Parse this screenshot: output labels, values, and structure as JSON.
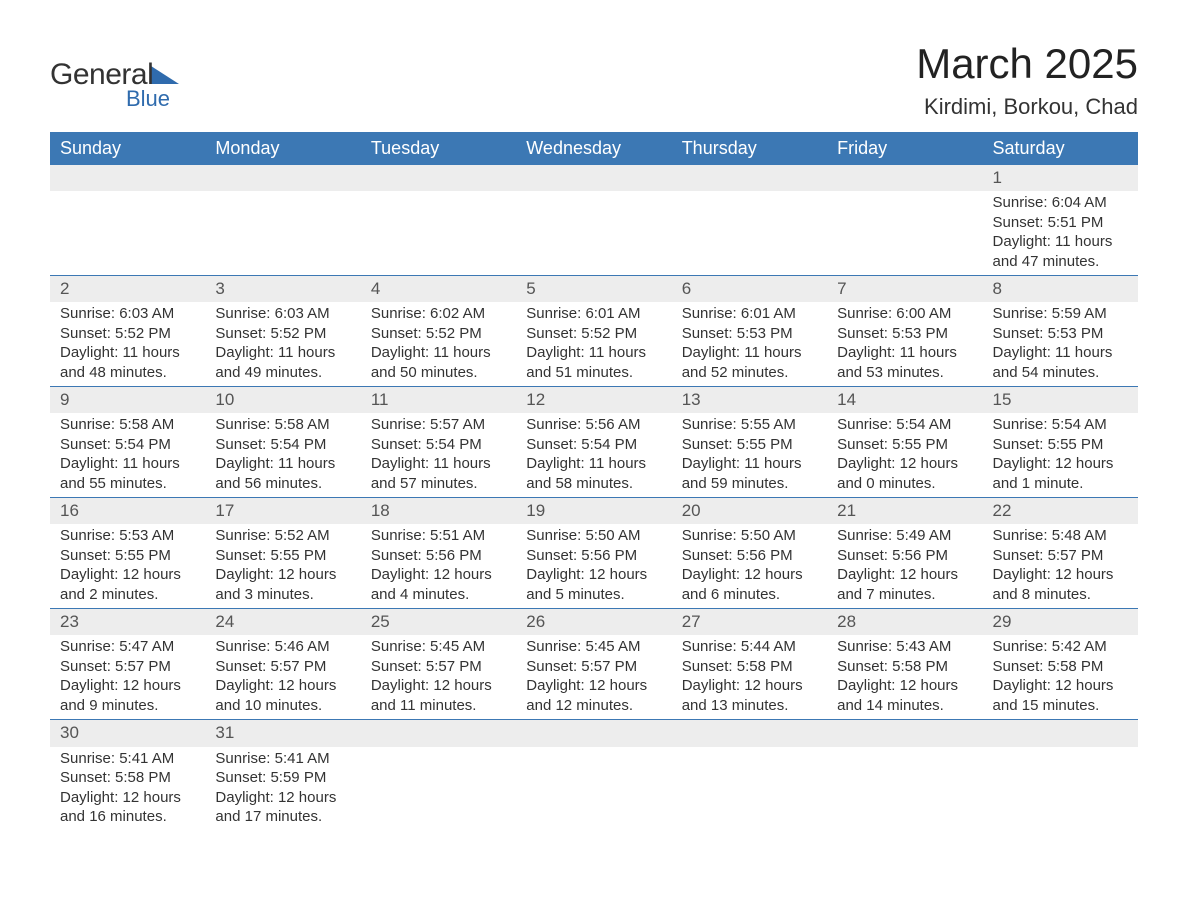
{
  "logo": {
    "main": "General",
    "sub": "Blue"
  },
  "title": "March 2025",
  "location": "Kirdimi, Borkou, Chad",
  "columns": [
    "Sunday",
    "Monday",
    "Tuesday",
    "Wednesday",
    "Thursday",
    "Friday",
    "Saturday"
  ],
  "header_bg": "#3c78b4",
  "header_fg": "#ffffff",
  "daynum_bg": "#ededed",
  "border_color": "#3c78b4",
  "weeks": [
    [
      {
        "d": "",
        "lines": []
      },
      {
        "d": "",
        "lines": []
      },
      {
        "d": "",
        "lines": []
      },
      {
        "d": "",
        "lines": []
      },
      {
        "d": "",
        "lines": []
      },
      {
        "d": "",
        "lines": []
      },
      {
        "d": "1",
        "lines": [
          "Sunrise: 6:04 AM",
          "Sunset: 5:51 PM",
          "Daylight: 11 hours and 47 minutes."
        ]
      }
    ],
    [
      {
        "d": "2",
        "lines": [
          "Sunrise: 6:03 AM",
          "Sunset: 5:52 PM",
          "Daylight: 11 hours and 48 minutes."
        ]
      },
      {
        "d": "3",
        "lines": [
          "Sunrise: 6:03 AM",
          "Sunset: 5:52 PM",
          "Daylight: 11 hours and 49 minutes."
        ]
      },
      {
        "d": "4",
        "lines": [
          "Sunrise: 6:02 AM",
          "Sunset: 5:52 PM",
          "Daylight: 11 hours and 50 minutes."
        ]
      },
      {
        "d": "5",
        "lines": [
          "Sunrise: 6:01 AM",
          "Sunset: 5:52 PM",
          "Daylight: 11 hours and 51 minutes."
        ]
      },
      {
        "d": "6",
        "lines": [
          "Sunrise: 6:01 AM",
          "Sunset: 5:53 PM",
          "Daylight: 11 hours and 52 minutes."
        ]
      },
      {
        "d": "7",
        "lines": [
          "Sunrise: 6:00 AM",
          "Sunset: 5:53 PM",
          "Daylight: 11 hours and 53 minutes."
        ]
      },
      {
        "d": "8",
        "lines": [
          "Sunrise: 5:59 AM",
          "Sunset: 5:53 PM",
          "Daylight: 11 hours and 54 minutes."
        ]
      }
    ],
    [
      {
        "d": "9",
        "lines": [
          "Sunrise: 5:58 AM",
          "Sunset: 5:54 PM",
          "Daylight: 11 hours and 55 minutes."
        ]
      },
      {
        "d": "10",
        "lines": [
          "Sunrise: 5:58 AM",
          "Sunset: 5:54 PM",
          "Daylight: 11 hours and 56 minutes."
        ]
      },
      {
        "d": "11",
        "lines": [
          "Sunrise: 5:57 AM",
          "Sunset: 5:54 PM",
          "Daylight: 11 hours and 57 minutes."
        ]
      },
      {
        "d": "12",
        "lines": [
          "Sunrise: 5:56 AM",
          "Sunset: 5:54 PM",
          "Daylight: 11 hours and 58 minutes."
        ]
      },
      {
        "d": "13",
        "lines": [
          "Sunrise: 5:55 AM",
          "Sunset: 5:55 PM",
          "Daylight: 11 hours and 59 minutes."
        ]
      },
      {
        "d": "14",
        "lines": [
          "Sunrise: 5:54 AM",
          "Sunset: 5:55 PM",
          "Daylight: 12 hours and 0 minutes."
        ]
      },
      {
        "d": "15",
        "lines": [
          "Sunrise: 5:54 AM",
          "Sunset: 5:55 PM",
          "Daylight: 12 hours and 1 minute."
        ]
      }
    ],
    [
      {
        "d": "16",
        "lines": [
          "Sunrise: 5:53 AM",
          "Sunset: 5:55 PM",
          "Daylight: 12 hours and 2 minutes."
        ]
      },
      {
        "d": "17",
        "lines": [
          "Sunrise: 5:52 AM",
          "Sunset: 5:55 PM",
          "Daylight: 12 hours and 3 minutes."
        ]
      },
      {
        "d": "18",
        "lines": [
          "Sunrise: 5:51 AM",
          "Sunset: 5:56 PM",
          "Daylight: 12 hours and 4 minutes."
        ]
      },
      {
        "d": "19",
        "lines": [
          "Sunrise: 5:50 AM",
          "Sunset: 5:56 PM",
          "Daylight: 12 hours and 5 minutes."
        ]
      },
      {
        "d": "20",
        "lines": [
          "Sunrise: 5:50 AM",
          "Sunset: 5:56 PM",
          "Daylight: 12 hours and 6 minutes."
        ]
      },
      {
        "d": "21",
        "lines": [
          "Sunrise: 5:49 AM",
          "Sunset: 5:56 PM",
          "Daylight: 12 hours and 7 minutes."
        ]
      },
      {
        "d": "22",
        "lines": [
          "Sunrise: 5:48 AM",
          "Sunset: 5:57 PM",
          "Daylight: 12 hours and 8 minutes."
        ]
      }
    ],
    [
      {
        "d": "23",
        "lines": [
          "Sunrise: 5:47 AM",
          "Sunset: 5:57 PM",
          "Daylight: 12 hours and 9 minutes."
        ]
      },
      {
        "d": "24",
        "lines": [
          "Sunrise: 5:46 AM",
          "Sunset: 5:57 PM",
          "Daylight: 12 hours and 10 minutes."
        ]
      },
      {
        "d": "25",
        "lines": [
          "Sunrise: 5:45 AM",
          "Sunset: 5:57 PM",
          "Daylight: 12 hours and 11 minutes."
        ]
      },
      {
        "d": "26",
        "lines": [
          "Sunrise: 5:45 AM",
          "Sunset: 5:57 PM",
          "Daylight: 12 hours and 12 minutes."
        ]
      },
      {
        "d": "27",
        "lines": [
          "Sunrise: 5:44 AM",
          "Sunset: 5:58 PM",
          "Daylight: 12 hours and 13 minutes."
        ]
      },
      {
        "d": "28",
        "lines": [
          "Sunrise: 5:43 AM",
          "Sunset: 5:58 PM",
          "Daylight: 12 hours and 14 minutes."
        ]
      },
      {
        "d": "29",
        "lines": [
          "Sunrise: 5:42 AM",
          "Sunset: 5:58 PM",
          "Daylight: 12 hours and 15 minutes."
        ]
      }
    ],
    [
      {
        "d": "30",
        "lines": [
          "Sunrise: 5:41 AM",
          "Sunset: 5:58 PM",
          "Daylight: 12 hours and 16 minutes."
        ]
      },
      {
        "d": "31",
        "lines": [
          "Sunrise: 5:41 AM",
          "Sunset: 5:59 PM",
          "Daylight: 12 hours and 17 minutes."
        ]
      },
      {
        "d": "",
        "lines": []
      },
      {
        "d": "",
        "lines": []
      },
      {
        "d": "",
        "lines": []
      },
      {
        "d": "",
        "lines": []
      },
      {
        "d": "",
        "lines": []
      }
    ]
  ]
}
